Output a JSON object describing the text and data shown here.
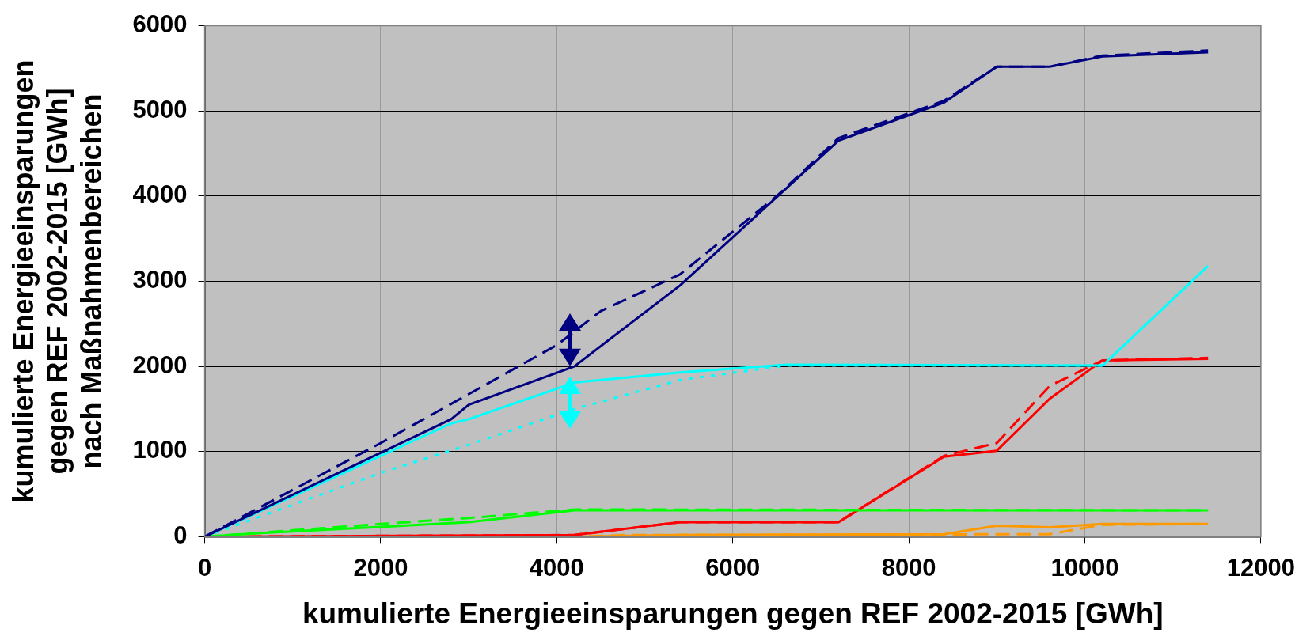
{
  "chart_data": {
    "type": "line",
    "xlabel": "kumulierte Energieeinsparungen gegen REF 2002-2015 [GWh]",
    "ylabel": "kumulierte Energieeinsparungen\ngegen REF 2002-2015 [GWh]\nnach Maßnahmenbereichen",
    "xlim": [
      0,
      12000
    ],
    "xticks": [
      0,
      2000,
      4000,
      6000,
      8000,
      10000,
      12000
    ],
    "ylim": [
      0,
      6000
    ],
    "yticks": [
      0,
      1000,
      2000,
      3000,
      4000,
      5000,
      6000
    ],
    "grid": true,
    "legend": false,
    "marker": "none",
    "series": [
      {
        "color": "#000080",
        "line_style": "solid",
        "x": [
          0,
          2800,
          3000,
          4200,
          5400,
          7200,
          8400,
          9000,
          9600,
          10200,
          11400
        ],
        "values": [
          0,
          1380,
          1550,
          2000,
          2950,
          4650,
          5100,
          5520,
          5520,
          5640,
          5690
        ]
      },
      {
        "color": "#000080",
        "line_style": "dashed",
        "x": [
          0,
          2000,
          4000,
          4500,
          5400,
          6500,
          7200,
          8400,
          9000,
          9600,
          10200,
          11400
        ],
        "values": [
          0,
          1100,
          2250,
          2650,
          3080,
          4000,
          4680,
          5120,
          5520,
          5520,
          5650,
          5710
        ]
      },
      {
        "color": "#00ffff",
        "line_style": "solid",
        "x": [
          0,
          2800,
          3000,
          4200,
          5400,
          6600,
          10200,
          11400
        ],
        "values": [
          0,
          1330,
          1380,
          1810,
          1930,
          2020,
          2010,
          3180
        ]
      },
      {
        "color": "#00ffff",
        "line_style": "dotted",
        "x": [
          0,
          2000,
          3000,
          4200,
          5400,
          6600,
          10200
        ],
        "values": [
          0,
          750,
          1080,
          1500,
          1840,
          2010,
          2010
        ]
      },
      {
        "color": "#00ff00",
        "line_style": "solid",
        "x": [
          0,
          600,
          3000,
          4200,
          11400
        ],
        "values": [
          0,
          40,
          170,
          310,
          310
        ]
      },
      {
        "color": "#00ff00",
        "line_style": "dashed",
        "x": [
          0,
          2000,
          3000,
          4200,
          11400
        ],
        "values": [
          0,
          150,
          220,
          320,
          310
        ]
      },
      {
        "color": "#ff0000",
        "line_style": "solid",
        "x": [
          0,
          4200,
          5400,
          7200,
          8400,
          9000,
          9600,
          10200,
          11400
        ],
        "values": [
          0,
          20,
          170,
          170,
          940,
          1010,
          1620,
          2070,
          2090
        ]
      },
      {
        "color": "#ff0000",
        "line_style": "dashed",
        "x": [
          0,
          2000,
          4200,
          5400,
          7200,
          8400,
          9000,
          9600,
          10200,
          11400
        ],
        "values": [
          0,
          10,
          20,
          170,
          170,
          950,
          1100,
          1770,
          2070,
          2100
        ]
      },
      {
        "color": "#ff9900",
        "line_style": "solid",
        "x": [
          0,
          4200,
          5400,
          8400,
          9000,
          9600,
          10200,
          11400
        ],
        "values": [
          0,
          0,
          20,
          30,
          130,
          110,
          150,
          150
        ]
      },
      {
        "color": "#ff9900",
        "line_style": "dashed",
        "x": [
          0,
          4200,
          4800,
          9600,
          10200,
          11400
        ],
        "values": [
          0,
          0,
          20,
          30,
          140,
          150
        ]
      }
    ]
  }
}
